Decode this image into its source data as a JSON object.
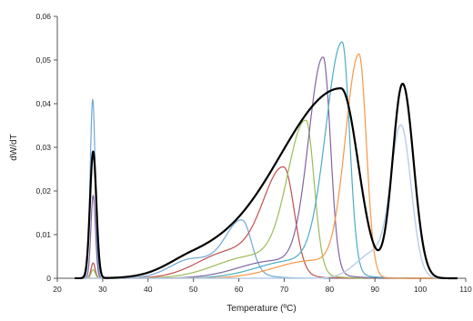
{
  "chart_data": {
    "type": "line",
    "title": "",
    "xlabel": "Temperature (ºC)",
    "ylabel": "dW/dT",
    "xlim": [
      20,
      110
    ],
    "ylim": [
      0,
      0.06
    ],
    "x_ticks": [
      "20",
      "30",
      "40",
      "50",
      "60",
      "70",
      "80",
      "90",
      "100",
      "110"
    ],
    "y_ticks": [
      "0",
      "0,01",
      "0,02",
      "0,03",
      "0,04",
      "0,05",
      "0,06"
    ],
    "grid": false,
    "legend": "none",
    "series": [
      {
        "color": "#6fa8d6",
        "width": 1.2,
        "peaks": [
          {
            "x": 27.8,
            "h": 0.041,
            "w": 0.55
          },
          {
            "x": 60.8,
            "h": 0.0115,
            "wl": 3.5,
            "wr": 2.0
          },
          {
            "x": 50.0,
            "h": 0.0045,
            "wl": 5.0,
            "wr": 8.0
          }
        ]
      },
      {
        "color": "#c0504d",
        "width": 1.2,
        "peaks": [
          {
            "x": 27.9,
            "h": 0.0035,
            "w": 0.45
          },
          {
            "x": 70.0,
            "h": 0.0235,
            "wl": 4.5,
            "wr": 2.2
          },
          {
            "x": 58.0,
            "h": 0.006,
            "wl": 7.0,
            "wr": 8.0
          }
        ]
      },
      {
        "color": "#9bbb59",
        "width": 1.2,
        "peaks": [
          {
            "x": 27.9,
            "h": 0.002,
            "w": 0.45
          },
          {
            "x": 74.8,
            "h": 0.0345,
            "wl": 4.0,
            "wr": 1.8
          },
          {
            "x": 63.0,
            "h": 0.005,
            "wl": 8.0,
            "wr": 8.0
          }
        ]
      },
      {
        "color": "#8064a2",
        "width": 1.2,
        "peaks": [
          {
            "x": 27.9,
            "h": 0.019,
            "w": 0.5
          },
          {
            "x": 78.6,
            "h": 0.049,
            "wl": 3.2,
            "wr": 1.6
          },
          {
            "x": 68.0,
            "h": 0.004,
            "wl": 8.0,
            "wr": 8.0
          }
        ]
      },
      {
        "color": "#4bacc6",
        "width": 1.2,
        "peaks": [
          {
            "x": 82.8,
            "h": 0.0525,
            "wl": 3.6,
            "wr": 1.6
          },
          {
            "x": 72.0,
            "h": 0.004,
            "wl": 8.0,
            "wr": 8.0
          }
        ]
      },
      {
        "color": "#f79646",
        "width": 1.2,
        "peaks": [
          {
            "x": 86.5,
            "h": 0.0505,
            "wl": 3.0,
            "wr": 1.6
          },
          {
            "x": 76.0,
            "h": 0.004,
            "wl": 8.0,
            "wr": 6.0
          }
        ]
      },
      {
        "color": "#b9cde5",
        "width": 1.4,
        "peaks": [
          {
            "x": 95.8,
            "h": 0.033,
            "wl": 2.2,
            "wr": 2.2
          },
          {
            "x": 90.0,
            "h": 0.006,
            "wl": 4.0,
            "wr": 4.0
          }
        ]
      },
      {
        "color": "#000000",
        "width": 2.2,
        "peaks": [
          {
            "x": 27.9,
            "h": 0.029,
            "w": 0.7
          },
          {
            "x": 82.5,
            "h": 0.0435,
            "wl": 14.0,
            "wr": 3.8
          },
          {
            "x": 50.0,
            "h": 0.0035,
            "wl": 6.0,
            "wr": 10.0
          },
          {
            "x": 96.1,
            "h": 0.0445,
            "wl": 2.2,
            "wr": 2.4
          }
        ]
      }
    ]
  }
}
